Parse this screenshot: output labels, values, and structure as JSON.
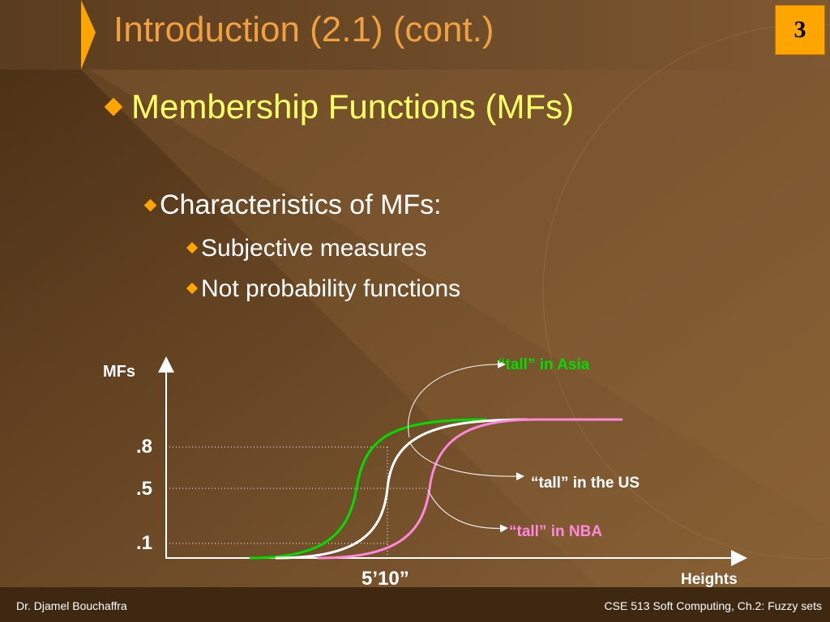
{
  "slide": {
    "title": "Introduction (2.1) (cont.)",
    "page_number": "3",
    "bullet_l1": "Membership Functions (MFs)",
    "bullet_l2": "Characteristics of MFs:",
    "bullets_l3": [
      "Subjective measures",
      "Not probability functions"
    ]
  },
  "figure": {
    "y_axis_label": "MFs",
    "x_axis_label": "Heights",
    "y_ticks": [
      ".8",
      ".5",
      ".1"
    ],
    "x_marker": "5’10”",
    "curves": [
      {
        "label": "“tall” in Asia",
        "color": "#00dd00"
      },
      {
        "label": "“tall” in the US",
        "color": "#ffffff"
      },
      {
        "label": "“tall” in NBA",
        "color": "#ff88dd"
      }
    ]
  },
  "footer": {
    "left": "Dr. Djamel Bouchaffra",
    "right": "CSE 513 Soft Computing, Ch.2: Fuzzy sets"
  }
}
